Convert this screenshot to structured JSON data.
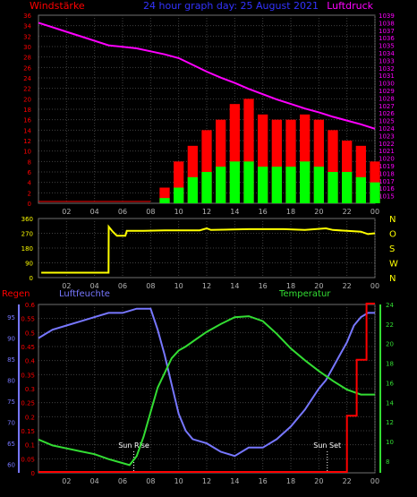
{
  "header": {
    "left_label": "Windstärke",
    "title": "24 hour graph day: 25 August 2021",
    "right_label": "Luftdruck"
  },
  "colors": {
    "background": "#000000",
    "grid": "#404040",
    "axis_frame": "#707070",
    "tick_text": "#b4b4b4",
    "wind_avg": "#00ff00",
    "wind_gust": "#ff0000",
    "pressure": "#ff00ff",
    "direction": "#ffff00",
    "rain": "#ff0000",
    "humidity": "#7777ff",
    "temperature": "#33dd33",
    "sun_marker": "#ffffff"
  },
  "chart_data": [
    {
      "type": "bar",
      "name": "wind-pressure",
      "x_ticks": [
        "02",
        "04",
        "06",
        "08",
        "10",
        "12",
        "14",
        "16",
        "18",
        "20",
        "22",
        "00"
      ],
      "left_axis": {
        "label": "Windstärke",
        "ylim": [
          0,
          36
        ],
        "ticks": [
          "0",
          "2",
          "4",
          "6",
          "8",
          "10",
          "12",
          "14",
          "16",
          "18",
          "20",
          "22",
          "24",
          "26",
          "28",
          "30",
          "32",
          "34",
          "36"
        ]
      },
      "right_axis": {
        "label": "Luftdruck",
        "ylim": [
          1014,
          1039
        ],
        "ticks": [
          "1015",
          "1016",
          "1017",
          "1018",
          "1019",
          "1020",
          "1021",
          "1022",
          "1023",
          "1024",
          "1025",
          "1026",
          "1027",
          "1028",
          "1029",
          "1030",
          "1031",
          "1032",
          "1033",
          "1034",
          "1035",
          "1036",
          "1037",
          "1038",
          "1039"
        ]
      },
      "x_range_hours": [
        0,
        24
      ],
      "wind_hours": [
        8,
        9,
        10,
        11,
        12,
        13,
        14,
        15,
        16,
        17,
        18,
        19,
        20,
        21,
        22,
        23,
        24
      ],
      "wind_avg": [
        0,
        1,
        3,
        5,
        6,
        7,
        8,
        8,
        7,
        7,
        7,
        8,
        7,
        6,
        6,
        5,
        4
      ],
      "wind_gust": [
        0,
        3,
        8,
        11,
        14,
        16,
        19,
        20,
        17,
        16,
        16,
        17,
        16,
        14,
        12,
        11,
        8
      ],
      "pressure_hours": [
        0,
        1,
        2,
        3,
        4,
        5,
        6,
        7,
        8,
        9,
        10,
        11,
        12,
        13,
        14,
        15,
        16,
        17,
        18,
        19,
        20,
        21,
        22,
        23,
        24
      ],
      "pressure": [
        1038.0,
        1037.4,
        1036.8,
        1036.2,
        1035.6,
        1035.0,
        1034.8,
        1034.6,
        1034.2,
        1033.8,
        1033.3,
        1032.4,
        1031.5,
        1030.7,
        1030.0,
        1029.2,
        1028.5,
        1027.8,
        1027.2,
        1026.6,
        1026.1,
        1025.5,
        1025.0,
        1024.5,
        1023.9
      ]
    },
    {
      "type": "line",
      "name": "wind-direction",
      "x_ticks": [
        "02",
        "04",
        "06",
        "08",
        "10",
        "12",
        "14",
        "16",
        "18",
        "20",
        "22",
        "00"
      ],
      "left_axis": {
        "ylim": [
          0,
          360
        ],
        "ticks": [
          "0",
          "90",
          "180",
          "270",
          "360"
        ]
      },
      "right_axis": {
        "ticks": [
          "N",
          "W",
          "S",
          "O",
          "N"
        ]
      },
      "x_range_hours": [
        0,
        24
      ],
      "hours": [
        0.2,
        5.0,
        5.01,
        5.3,
        5.6,
        6.0,
        6.2,
        6.3,
        7.5,
        9.0,
        11.5,
        12.0,
        12.3,
        15.0,
        17.5,
        19.0,
        20.5,
        21.0,
        22.0,
        23.0,
        23.5,
        24.0
      ],
      "direction": [
        30,
        30,
        310,
        280,
        255,
        255,
        255,
        285,
        285,
        288,
        288,
        300,
        290,
        295,
        295,
        290,
        300,
        290,
        285,
        280,
        265,
        270
      ]
    },
    {
      "type": "line",
      "name": "rain-humidity-temperature",
      "x_ticks": [
        "02",
        "04",
        "06",
        "08",
        "10",
        "12",
        "14",
        "16",
        "18",
        "20",
        "22",
        "00"
      ],
      "legend": [
        "Regen",
        "Luftfeuchte",
        "Temperatur"
      ],
      "rain_axis": {
        "label": "Regen",
        "ylim": [
          0,
          0.6
        ],
        "ticks": [
          "0",
          "0.05",
          "0.1",
          "0.15",
          "0.2",
          "0.25",
          "0.3",
          "0.35",
          "0.4",
          "0.45",
          "0.5",
          "0.55",
          "0.6"
        ]
      },
      "humidity_axis": {
        "label": "Luftfeuchte",
        "ylim": [
          58,
          98
        ],
        "ticks": [
          "60",
          "65",
          "70",
          "75",
          "80",
          "85",
          "90",
          "95"
        ]
      },
      "temperature_axis": {
        "label": "Temperatur",
        "ylim": [
          6.8,
          24.0
        ],
        "ticks": [
          "8",
          "10",
          "12",
          "14",
          "16",
          "18",
          "20",
          "22",
          "24"
        ]
      },
      "x_range_hours": [
        0,
        24
      ],
      "annotations": [
        {
          "text": "Sun Rise",
          "hour": 6.8
        },
        {
          "text": "Sun Set",
          "hour": 20.6
        }
      ],
      "rain_hours": [
        0,
        22.0,
        22.0,
        22.7,
        22.7,
        23.4,
        23.4,
        24.0
      ],
      "rain": [
        0,
        0,
        0.2,
        0.2,
        0.4,
        0.4,
        0.6,
        0.6
      ],
      "humidity_hours": [
        0,
        0.5,
        1,
        2,
        3,
        4,
        5,
        6,
        7,
        8,
        8.5,
        9,
        9.5,
        10,
        10.5,
        11,
        12,
        13,
        14,
        15,
        16,
        17,
        18,
        19,
        20,
        20.5,
        21,
        21.5,
        22,
        22.5,
        23,
        23.5,
        24
      ],
      "humidity": [
        90,
        91,
        92,
        93,
        94,
        95,
        96,
        96,
        97,
        97,
        92,
        86,
        79,
        72,
        68,
        66,
        65,
        63,
        62,
        64,
        64,
        66,
        69,
        73,
        78,
        80,
        83,
        86,
        89,
        93,
        95,
        96,
        96
      ],
      "temperature_hours": [
        0,
        1,
        2,
        3,
        4,
        5,
        6,
        6.5,
        7,
        7.5,
        8,
        8.5,
        9,
        9.5,
        10,
        10.5,
        11,
        12,
        13,
        14,
        15,
        16,
        17,
        18,
        19,
        20,
        21,
        22,
        23,
        24
      ],
      "temperature": [
        10.2,
        9.6,
        9.3,
        9.0,
        8.7,
        8.2,
        7.8,
        7.6,
        8.5,
        10.5,
        13.0,
        15.5,
        17.0,
        18.5,
        19.3,
        19.7,
        20.2,
        21.2,
        22.0,
        22.7,
        22.8,
        22.3,
        21.0,
        19.5,
        18.3,
        17.2,
        16.2,
        15.3,
        14.8,
        14.8
      ]
    }
  ]
}
